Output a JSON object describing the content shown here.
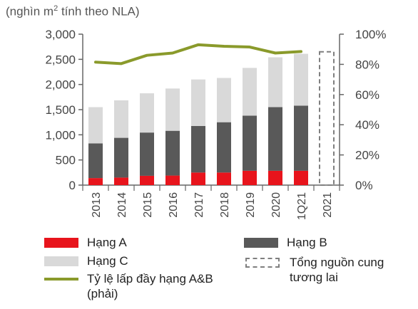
{
  "unit_label_base": "(nghìn m",
  "unit_label_sup": "2",
  "unit_label_rest": " tính theo NLA)",
  "chart_data": {
    "type": "bar",
    "stacked": true,
    "categories": [
      "2013",
      "2014",
      "2015",
      "2016",
      "2017",
      "2018",
      "2019",
      "2020",
      "1Q21",
      "2021"
    ],
    "series": [
      {
        "name": "Hạng A",
        "color": "#e8141c",
        "values": [
          140,
          150,
          185,
          190,
          250,
          250,
          285,
          285,
          285,
          0
        ]
      },
      {
        "name": "Hạng B",
        "color": "#595959",
        "values": [
          690,
          790,
          860,
          890,
          925,
          1000,
          1095,
          1265,
          1295,
          0
        ]
      },
      {
        "name": "Hạng C",
        "color": "#d9d9d9",
        "values": [
          720,
          745,
          780,
          840,
          925,
          880,
          950,
          990,
          1030,
          0
        ]
      }
    ],
    "future_supply": {
      "name": "Tổng nguồn cung tương lai",
      "category": "2021",
      "value": 2650,
      "color": "#7f7f7f"
    },
    "line_series": {
      "name": "Tỷ lệ lấp đầy hạng A&B (phải)",
      "color": "#8a9a2b",
      "values": [
        81.5,
        80.5,
        86,
        87.5,
        93,
        92,
        91.5,
        87.5,
        88.5,
        null
      ]
    },
    "y_left": {
      "min": 0,
      "max": 3000,
      "ticks": [
        "0",
        "500",
        "1,000",
        "1,500",
        "2,000",
        "2,500",
        "3,000"
      ],
      "tick_values": [
        0,
        500,
        1000,
        1500,
        2000,
        2500,
        3000
      ]
    },
    "y_right": {
      "min": 0,
      "max": 100,
      "ticks": [
        "0%",
        "20%",
        "40%",
        "60%",
        "80%",
        "100%"
      ],
      "tick_values": [
        0,
        20,
        40,
        60,
        80,
        100
      ]
    },
    "legend": [
      {
        "name": "Hạng A",
        "kind": "box",
        "color": "#e8141c"
      },
      {
        "name": "Hạng B",
        "kind": "box",
        "color": "#595959"
      },
      {
        "name": "Hạng C",
        "kind": "box",
        "color": "#d9d9d9"
      },
      {
        "name": "Tổng nguồn cung tương lai",
        "kind": "dash",
        "color": "#7f7f7f"
      },
      {
        "name": "Tỷ lệ lấp đầy hạng A&B (phải)",
        "kind": "line",
        "color": "#8a9a2b"
      }
    ]
  }
}
